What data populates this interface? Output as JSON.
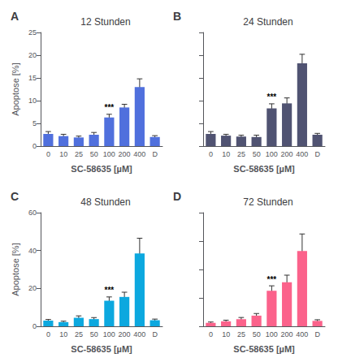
{
  "chart_data": [
    {
      "type": "bar",
      "label": "A",
      "title": "12 Stunden",
      "categories": [
        "0",
        "10",
        "25",
        "50",
        "100",
        "200",
        "400",
        "D"
      ],
      "values": [
        2.7,
        2.2,
        1.9,
        2.5,
        6.3,
        8.5,
        13.0,
        2.0
      ],
      "errors": [
        0.5,
        0.4,
        0.3,
        0.5,
        0.7,
        0.7,
        1.8,
        0.3
      ],
      "annotations": [
        {
          "text": "***",
          "category": "100"
        }
      ],
      "xlabel": "SC-58635 [µM]",
      "ylabel": "Apoptose [%]",
      "ylim": [
        0,
        25
      ],
      "yticks": [
        0,
        5,
        10,
        15,
        20,
        25
      ],
      "grid": false
    },
    {
      "type": "bar",
      "label": "B",
      "title": "24 Stunden",
      "categories": [
        "0",
        "10",
        "25",
        "50",
        "100",
        "200",
        "400",
        "D"
      ],
      "values": [
        2.7,
        2.3,
        2.1,
        2.0,
        8.3,
        9.4,
        18.2,
        2.5
      ],
      "errors": [
        0.5,
        0.3,
        0.3,
        0.4,
        1.0,
        1.2,
        2.0,
        0.3
      ],
      "annotations": [
        {
          "text": "***",
          "category": "100"
        }
      ],
      "xlabel": "SC-58635 [µM]",
      "ylim": [
        0,
        25
      ],
      "yticks": [
        0,
        5,
        10,
        15,
        20,
        25
      ],
      "grid": false,
      "tick_labels": "x"
    },
    {
      "type": "bar",
      "label": "C",
      "title": "48 Stunden",
      "categories": [
        "0",
        "10",
        "25",
        "50",
        "100",
        "200",
        "400",
        "D"
      ],
      "values": [
        3.0,
        2.2,
        4.5,
        3.8,
        13.5,
        15.5,
        38.5,
        3.2
      ],
      "errors": [
        0.6,
        0.5,
        1.0,
        0.8,
        2.0,
        2.5,
        8.0,
        0.6
      ],
      "annotations": [
        {
          "text": "***",
          "category": "100"
        }
      ],
      "xlabel": "SC-58635 [µM]",
      "ylabel": "Apoptose [%]",
      "ylim": [
        0,
        60
      ],
      "yticks": [
        0,
        20,
        40,
        60
      ],
      "grid": false
    },
    {
      "type": "bar",
      "label": "D",
      "title": "72 Stunden",
      "categories": [
        "0",
        "10",
        "25",
        "50",
        "100",
        "200",
        "400",
        "D"
      ],
      "values": [
        2.5,
        3.5,
        5.0,
        7.5,
        25.0,
        31.0,
        53.0,
        3.8
      ],
      "errors": [
        0.5,
        0.8,
        1.2,
        1.5,
        3.5,
        5.0,
        12.0,
        0.8
      ],
      "annotations": [
        {
          "text": "***",
          "category": "100"
        }
      ],
      "xlabel": "SC-58635 [µM]",
      "ylim": [
        0,
        80
      ],
      "yticks": [
        0,
        20,
        40,
        60,
        80
      ],
      "grid": false,
      "tick_labels": "x"
    }
  ]
}
